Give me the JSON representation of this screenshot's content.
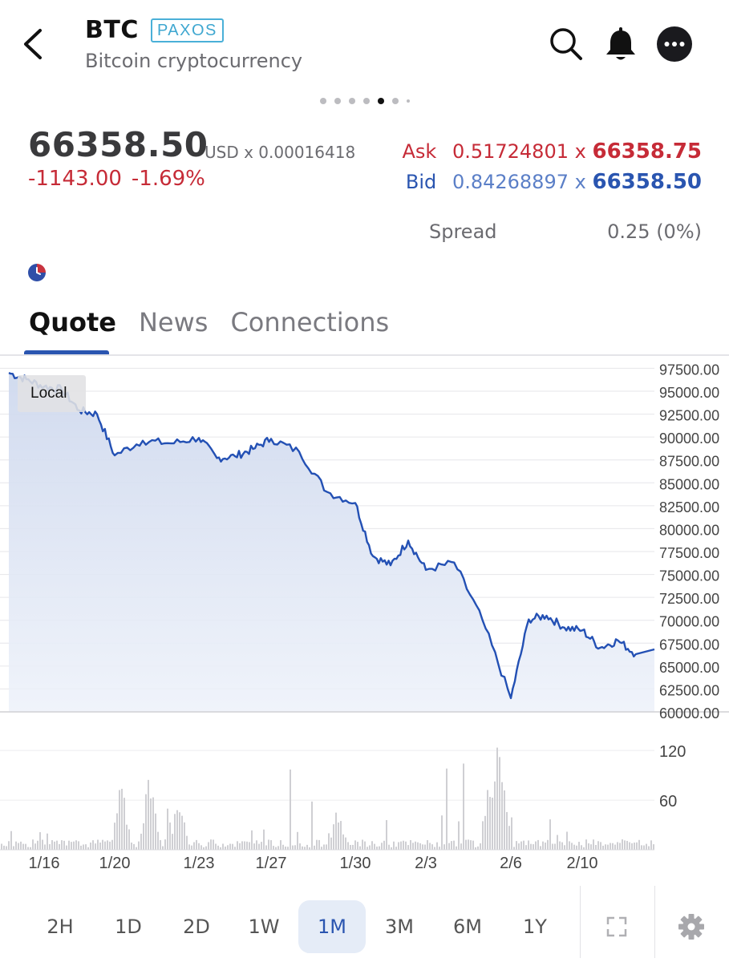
{
  "header": {
    "symbol": "BTC",
    "exchange_badge": "PAXOS",
    "subtitle": "Bitcoin cryptocurrency",
    "icons": [
      "back-icon",
      "search-icon",
      "bell-icon",
      "more-icon"
    ],
    "page_indicator": {
      "count": 7,
      "active_index": 4
    }
  },
  "quote": {
    "last": "66358.50",
    "currency_line": "USD  x  0.00016418",
    "change": "-1143.00",
    "change_pct": "-1.69%",
    "ask_label": "Ask",
    "ask_size": "0.51724801",
    "ask_price": "66358.75",
    "bid_label": "Bid",
    "bid_size": "0.84268897",
    "bid_price": "66358.50",
    "times": "x",
    "spread_label": "Spread",
    "spread_value": "0.25 (0%)"
  },
  "tabs": [
    {
      "label": "Quote",
      "active": true
    },
    {
      "label": "News",
      "active": false
    },
    {
      "label": "Connections",
      "active": false
    }
  ],
  "chart": {
    "local_label": "Local"
  },
  "ranges": [
    {
      "label": "2H",
      "active": false
    },
    {
      "label": "1D",
      "active": false
    },
    {
      "label": "2D",
      "active": false
    },
    {
      "label": "1W",
      "active": false
    },
    {
      "label": "1M",
      "active": true
    },
    {
      "label": "3M",
      "active": false
    },
    {
      "label": "6M",
      "active": false
    },
    {
      "label": "1Y",
      "active": false
    }
  ],
  "toolbar_icons": [
    "fullscreen-icon",
    "settings-icon"
  ],
  "colors": {
    "negative": "#c62b37",
    "bid_blue": "#2a55b0",
    "line": "#2350b4",
    "badge": "#3fa7d0"
  },
  "chart_data": {
    "type": "line",
    "title": "",
    "xlabel": "",
    "ylabel": "",
    "x_ticks": [
      "1/16",
      "1/20",
      "1/23",
      "1/27",
      "1/30",
      "2/3",
      "2/6",
      "2/10"
    ],
    "y_ticks": [
      "97500.00",
      "95000.00",
      "92500.00",
      "90000.00",
      "87500.00",
      "85000.00",
      "82500.00",
      "80000.00",
      "77500.00",
      "75000.00",
      "72500.00",
      "70000.00",
      "67500.00",
      "65000.00",
      "62500.00",
      "60000.00"
    ],
    "ylim": [
      60000,
      98500
    ],
    "grid": true,
    "series": [
      {
        "x": [
          "1/14",
          "1/15",
          "1/16",
          "1/17",
          "1/18",
          "1/19",
          "1/20",
          "1/21",
          "1/22",
          "1/23",
          "1/24",
          "1/25",
          "1/26",
          "1/27",
          "1/28",
          "1/29",
          "1/30",
          "1/31",
          "2/1",
          "2/2",
          "2/3",
          "2/4",
          "2/5",
          "2/6",
          "2/7",
          "2/8",
          "2/9",
          "2/10",
          "2/11",
          "2/12",
          "2/13"
        ],
        "y": [
          97000,
          96300,
          95500,
          95200,
          92900,
          92500,
          88000,
          89600,
          89300,
          89900,
          87700,
          87900,
          88700,
          89800,
          88400,
          84000,
          82800,
          77000,
          76000,
          78700,
          75500,
          76300,
          70000,
          61500,
          70100,
          70500,
          69200,
          68900,
          67000,
          67800,
          66300
        ]
      }
    ],
    "volume": {
      "y_ticks": [
        "120",
        "60"
      ],
      "ylim": [
        0,
        155
      ]
    }
  }
}
